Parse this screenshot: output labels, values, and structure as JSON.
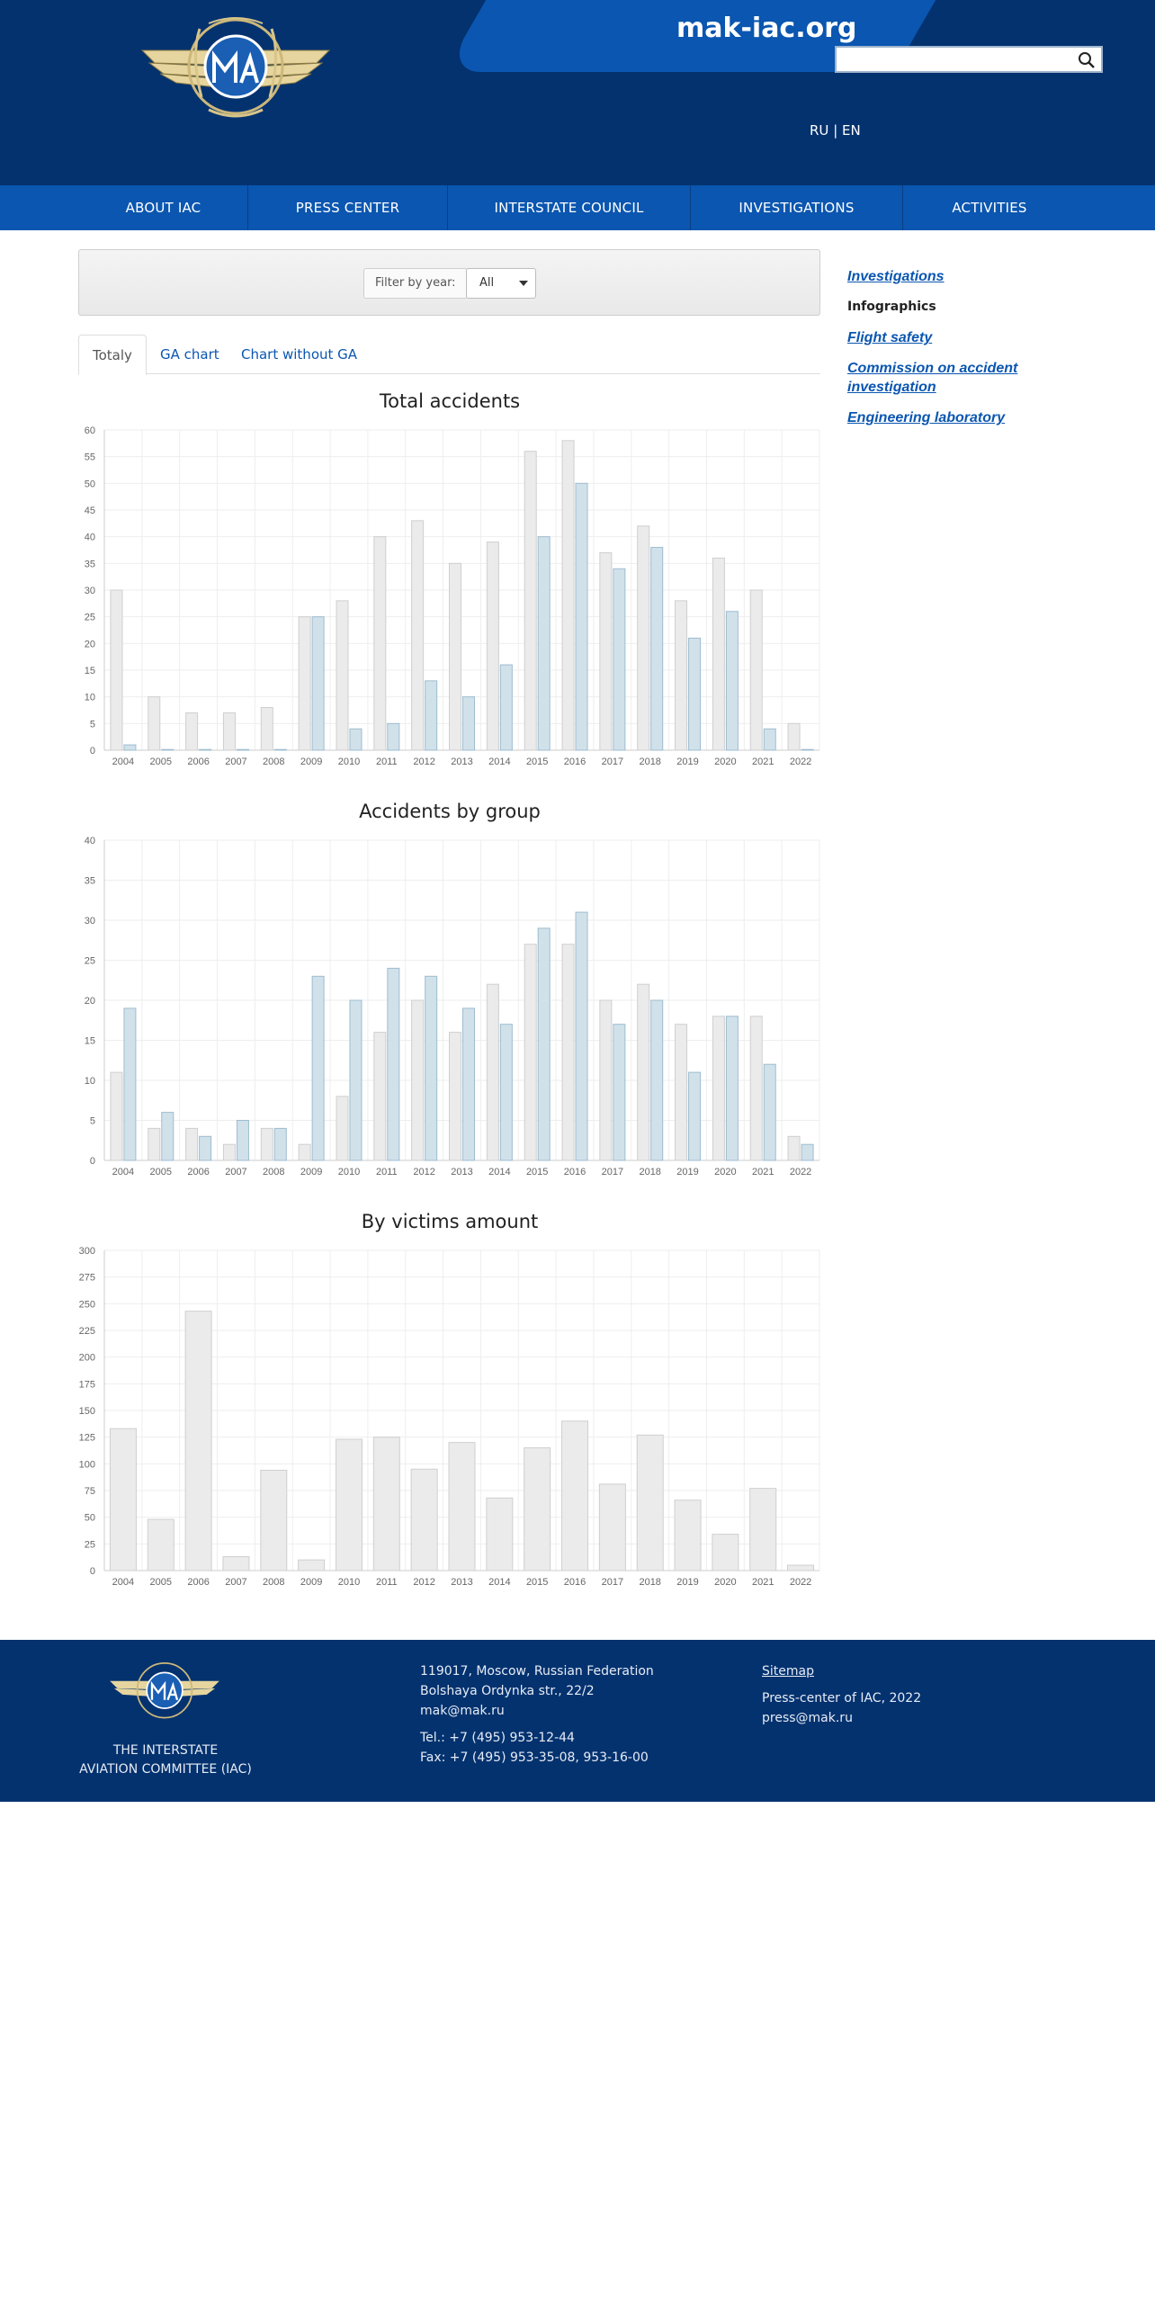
{
  "header": {
    "site_name": "mak-iac.org",
    "search_placeholder": "",
    "lang_ru": "RU",
    "lang_sep": "|",
    "lang_en": "EN",
    "colors": {
      "dark": "#04326f",
      "bright": "#0a56b0",
      "gold": "#d8c58a"
    }
  },
  "nav": {
    "items": [
      "ABOUT IAC",
      "PRESS CENTER",
      "INTERSTATE COUNCIL",
      "INVESTIGATIONS",
      "ACTIVITIES"
    ]
  },
  "filter": {
    "label": "Filter by year:",
    "selected": "All"
  },
  "tabs": [
    "Totaly",
    "GA chart",
    "Chart without GA"
  ],
  "sidebar": {
    "items": [
      {
        "label": "Investigations",
        "link": true
      },
      {
        "label": "Infographics",
        "link": false
      },
      {
        "label": "Flight safety",
        "link": true
      },
      {
        "label": "Commission on accident investigation",
        "link": true
      },
      {
        "label": "Engineering laboratory",
        "link": true
      }
    ]
  },
  "chart_data": [
    {
      "type": "bar",
      "title": "Total accidents",
      "categories": [
        "2004",
        "2005",
        "2006",
        "2007",
        "2008",
        "2009",
        "2010",
        "2011",
        "2012",
        "2013",
        "2014",
        "2015",
        "2016",
        "2017",
        "2018",
        "2019",
        "2020",
        "2021",
        "2022"
      ],
      "series": [
        {
          "values": [
            30,
            10,
            7,
            7,
            8,
            25,
            28,
            40,
            43,
            35,
            39,
            56,
            58,
            37,
            42,
            28,
            36,
            30,
            5
          ],
          "color": "#ebebeb"
        },
        {
          "values": [
            1,
            0,
            0,
            0,
            0,
            25,
            4,
            5,
            13,
            10,
            16,
            40,
            50,
            34,
            38,
            21,
            26,
            4,
            0
          ],
          "color": "#d1e1ea"
        }
      ],
      "ylim": [
        0,
        60
      ],
      "yticks": [
        0,
        5,
        10,
        15,
        20,
        25,
        30,
        35,
        40,
        45,
        50,
        55,
        60
      ],
      "grid": true
    },
    {
      "type": "bar",
      "title": "Accidents by group",
      "categories": [
        "2004",
        "2005",
        "2006",
        "2007",
        "2008",
        "2009",
        "2010",
        "2011",
        "2012",
        "2013",
        "2014",
        "2015",
        "2016",
        "2017",
        "2018",
        "2019",
        "2020",
        "2021",
        "2022"
      ],
      "series": [
        {
          "values": [
            11,
            4,
            4,
            2,
            4,
            2,
            8,
            16,
            20,
            16,
            22,
            27,
            27,
            20,
            22,
            17,
            18,
            18,
            3
          ],
          "color": "#ebebeb"
        },
        {
          "values": [
            19,
            6,
            3,
            5,
            4,
            23,
            20,
            24,
            23,
            19,
            17,
            29,
            31,
            17,
            20,
            11,
            18,
            12,
            2
          ],
          "color": "#d1e1ea"
        }
      ],
      "ylim": [
        0,
        40
      ],
      "yticks": [
        0,
        5,
        10,
        15,
        20,
        25,
        30,
        35,
        40
      ],
      "grid": true
    },
    {
      "type": "bar",
      "title": "By victims amount",
      "categories": [
        "2004",
        "2005",
        "2006",
        "2007",
        "2008",
        "2009",
        "2010",
        "2011",
        "2012",
        "2013",
        "2014",
        "2015",
        "2016",
        "2017",
        "2018",
        "2019",
        "2020",
        "2021",
        "2022"
      ],
      "series": [
        {
          "values": [
            133,
            48,
            243,
            13,
            94,
            10,
            123,
            125,
            95,
            120,
            68,
            115,
            140,
            81,
            127,
            66,
            34,
            77,
            5
          ],
          "color": "#ebebeb"
        }
      ],
      "ylim": [
        0,
        300
      ],
      "yticks": [
        0,
        25,
        50,
        75,
        100,
        125,
        150,
        175,
        200,
        225,
        250,
        275,
        300
      ],
      "grid": true
    }
  ],
  "footer": {
    "org_line1": "THE INTERSTATE",
    "org_line2": "AVIATION COMMITTEE (IAC)",
    "address1": "119017, Moscow, Russian Federation",
    "address2": "Bolshaya Ordynka str., 22/2",
    "email": "mak@mak.ru",
    "tel": "Tel.: +7 (495) 953-12-44",
    "fax": "Fax: +7 (495) 953-35-08, 953-16-00",
    "sitemap": "Sitemap",
    "press": "Press-center of IAC, 2022",
    "press_email": "press@mak.ru"
  }
}
